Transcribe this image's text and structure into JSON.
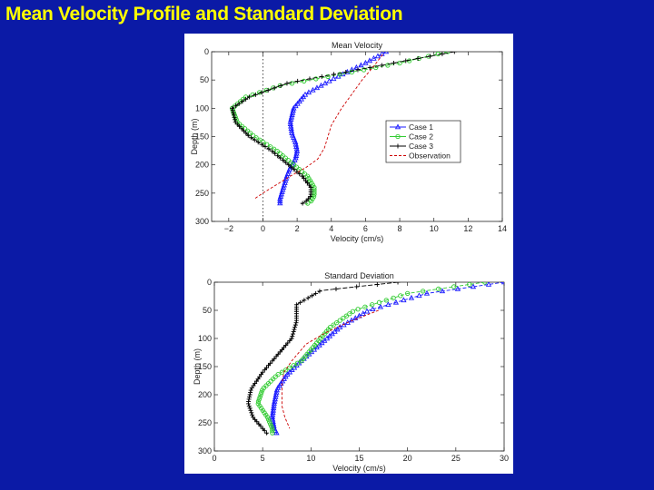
{
  "slide": {
    "title": "Mean Velocity Profile and Standard Deviation"
  },
  "colors": {
    "background": "#0b1aa6",
    "title": "#ffff00",
    "case1": "#1a1aff",
    "case2": "#33cc33",
    "case3": "#000000",
    "observation": "#cc0000"
  },
  "chart_data": [
    {
      "type": "line",
      "title": "Mean Velocity",
      "xlabel": "Velocity (cm/s)",
      "ylabel": "Depth (m)",
      "xlim": [
        -3,
        14
      ],
      "ylim": [
        300,
        0
      ],
      "xticks": [
        -2,
        0,
        2,
        4,
        6,
        8,
        10,
        12,
        14
      ],
      "yticks": [
        0,
        50,
        100,
        150,
        200,
        250,
        300
      ],
      "reference_line_x": 0,
      "legend": {
        "placement": "right",
        "entries": [
          "Case 1",
          "Case 2",
          "Case 3",
          "Observation"
        ]
      },
      "series": [
        {
          "name": "Case 1",
          "color": "#1a1aff",
          "marker": "triangle",
          "x": [
            7.2,
            6.0,
            4.0,
            2.5,
            1.8,
            1.6,
            1.7,
            1.9,
            2.0,
            1.9,
            1.6,
            1.4,
            1.2,
            1.0,
            1.0
          ],
          "y": [
            0,
            20,
            50,
            75,
            100,
            125,
            145,
            160,
            175,
            190,
            205,
            220,
            240,
            260,
            270
          ]
        },
        {
          "name": "Case 2",
          "color": "#33cc33",
          "marker": "circle",
          "x": [
            10.8,
            8.0,
            4.5,
            1.0,
            -1.0,
            -1.8,
            -1.5,
            -0.5,
            0.8,
            1.8,
            2.6,
            3.0,
            3.0,
            2.8,
            2.5
          ],
          "y": [
            0,
            20,
            40,
            60,
            80,
            100,
            125,
            150,
            175,
            200,
            220,
            240,
            255,
            265,
            270
          ]
        },
        {
          "name": "Case 3",
          "color": "#000000",
          "marker": "plus",
          "x": [
            11.2,
            8.0,
            4.5,
            1.5,
            -0.8,
            -1.8,
            -1.6,
            -0.8,
            0.5,
            1.5,
            2.3,
            2.8,
            2.8,
            2.5,
            2.2
          ],
          "y": [
            0,
            18,
            38,
            55,
            80,
            100,
            125,
            150,
            175,
            200,
            220,
            240,
            255,
            265,
            270
          ]
        },
        {
          "name": "Observation",
          "color": "#cc0000",
          "marker": "none",
          "x": [
            7.0,
            6.5,
            5.8,
            4.6,
            4.0,
            3.8,
            3.6,
            3.2,
            2.5,
            1.6,
            0.8,
            0.0,
            -0.5
          ],
          "y": [
            5,
            25,
            50,
            100,
            130,
            150,
            170,
            190,
            205,
            220,
            235,
            250,
            260
          ]
        }
      ]
    },
    {
      "type": "line",
      "title": "Standard Deviation",
      "xlabel": "Velocity (cm/s)",
      "ylabel": "Depth (m)",
      "xlim": [
        0,
        30
      ],
      "ylim": [
        300,
        0
      ],
      "xticks": [
        0,
        5,
        10,
        15,
        20,
        25,
        30
      ],
      "yticks": [
        0,
        50,
        100,
        150,
        200,
        250,
        300
      ],
      "series": [
        {
          "name": "Case 1",
          "color": "#1a1aff",
          "marker": "triangle",
          "x": [
            30,
            22,
            16,
            13.0,
            11.0,
            9.0,
            7.5,
            6.5,
            6.2,
            6.0,
            6.2,
            6.5
          ],
          "y": [
            0,
            20,
            50,
            80,
            110,
            140,
            165,
            190,
            215,
            240,
            260,
            270
          ]
        },
        {
          "name": "Case 2",
          "color": "#33cc33",
          "marker": "circle",
          "x": [
            28,
            20,
            14.5,
            12.0,
            10.5,
            9.0,
            6.5,
            5.0,
            4.5,
            5.5,
            6.0,
            6.0
          ],
          "y": [
            0,
            20,
            50,
            80,
            110,
            140,
            165,
            190,
            215,
            240,
            260,
            270
          ]
        },
        {
          "name": "Case 3",
          "color": "#000000",
          "marker": "plus",
          "x": [
            19,
            11,
            8.5,
            8.5,
            8.0,
            6.5,
            5.0,
            3.8,
            3.5,
            4.0,
            5.0,
            5.5
          ],
          "y": [
            0,
            15,
            40,
            70,
            100,
            130,
            160,
            190,
            215,
            240,
            260,
            270
          ]
        },
        {
          "name": "Observation",
          "color": "#cc0000",
          "marker": "none",
          "x": [
            17,
            14,
            11.5,
            9.5,
            8.0,
            7.2,
            7.0,
            7.0,
            7.0,
            7.3,
            7.8
          ],
          "y": [
            50,
            70,
            90,
            110,
            140,
            160,
            180,
            200,
            220,
            240,
            260
          ]
        }
      ]
    }
  ]
}
